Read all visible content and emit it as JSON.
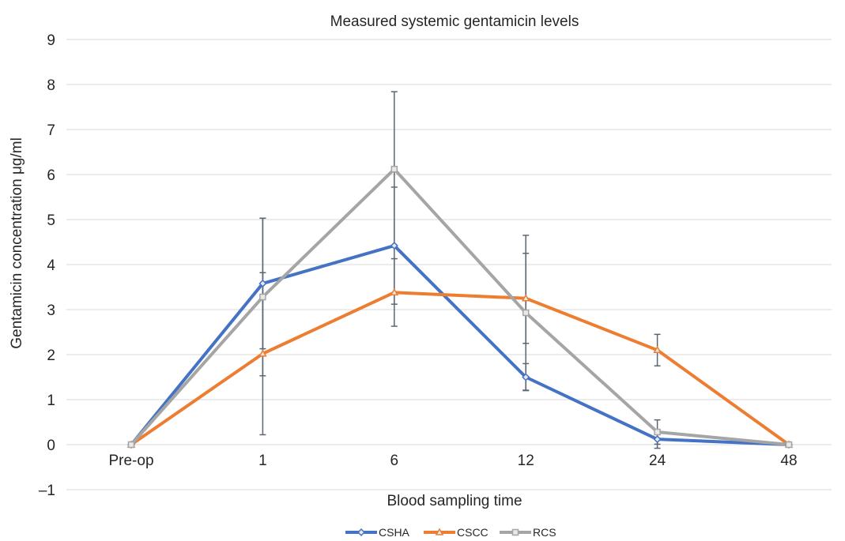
{
  "chart_data": {
    "type": "line",
    "title": "Measured systemic gentamicin levels",
    "xlabel": "Blood sampling time",
    "ylabel": "Gentamicin concentration μg/ml",
    "categories": [
      "Pre-op",
      "1",
      "6",
      "12",
      "24",
      "48"
    ],
    "ylim": [
      -1,
      9
    ],
    "yticks": [
      -1,
      0,
      1,
      2,
      3,
      4,
      5,
      6,
      7,
      8,
      9
    ],
    "ytick_labels": [
      "–1",
      "0",
      "1",
      "2",
      "3",
      "4",
      "5",
      "6",
      "7",
      "8",
      "9"
    ],
    "grid": true,
    "legend_position": "bottom",
    "series": [
      {
        "name": "CSHA",
        "color": "#4472C4",
        "marker": "diamond",
        "values": [
          0,
          3.58,
          4.42,
          1.5,
          0.12,
          0
        ],
        "error": [
          null,
          1.45,
          1.3,
          0.3,
          0.2,
          null
        ]
      },
      {
        "name": "CSCC",
        "color": "#ED7D31",
        "marker": "triangle",
        "values": [
          0,
          2.02,
          3.38,
          3.25,
          2.1,
          0
        ],
        "error": [
          null,
          1.8,
          0.75,
          1.0,
          0.35,
          null
        ]
      },
      {
        "name": "RCS",
        "color": "#A5A5A5",
        "marker": "square",
        "values": [
          0,
          3.28,
          6.12,
          2.93,
          0.28,
          0
        ],
        "error": [
          null,
          1.75,
          1.72,
          1.72,
          0.27,
          null
        ]
      }
    ]
  }
}
